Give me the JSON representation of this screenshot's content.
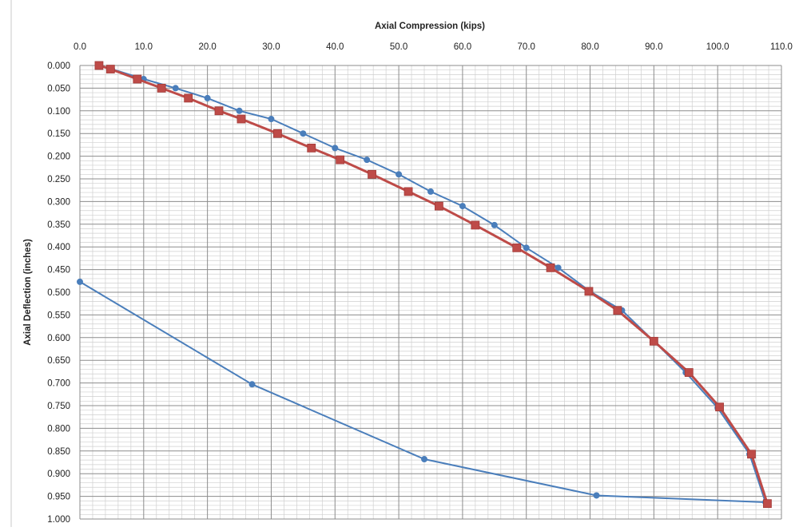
{
  "chart_data": {
    "type": "scatter",
    "title": "",
    "xlabel": "Axial Compression (kips)",
    "ylabel": "Axial Deflection (inches)",
    "x_axis_position": "top",
    "y_axis_reversed": true,
    "xlim": [
      0,
      110
    ],
    "ylim": [
      0,
      1.0
    ],
    "x_major_step": 10,
    "x_minor_step": 2,
    "y_major_step": 0.05,
    "y_minor_step": 0.01,
    "grid": true,
    "legend": "none",
    "x_tick_labels": [
      "0.0",
      "10.0",
      "20.0",
      "30.0",
      "40.0",
      "50.0",
      "60.0",
      "70.0",
      "80.0",
      "90.0",
      "100.0",
      "110.0"
    ],
    "y_tick_labels": [
      "0.000",
      "0.050",
      "0.100",
      "0.150",
      "0.200",
      "0.250",
      "0.300",
      "0.350",
      "0.400",
      "0.450",
      "0.500",
      "0.550",
      "0.600",
      "0.650",
      "0.700",
      "0.750",
      "0.800",
      "0.850",
      "0.900",
      "0.950",
      "1.000"
    ],
    "series": [
      {
        "color": "#4a7ebb",
        "marker": "circle",
        "line_width": 2,
        "points": [
          [
            3.0,
            0.0
          ],
          [
            5.0,
            0.008
          ],
          [
            10.0,
            0.03
          ],
          [
            15.0,
            0.05
          ],
          [
            20.0,
            0.072
          ],
          [
            25.0,
            0.1
          ],
          [
            30.0,
            0.118
          ],
          [
            35.0,
            0.15
          ],
          [
            40.0,
            0.182
          ],
          [
            45.0,
            0.208
          ],
          [
            50.0,
            0.24
          ],
          [
            55.0,
            0.278
          ],
          [
            60.0,
            0.31
          ],
          [
            65.0,
            0.352
          ],
          [
            70.0,
            0.402
          ],
          [
            75.0,
            0.446
          ],
          [
            80.0,
            0.498
          ],
          [
            85.0,
            0.54
          ],
          [
            90.0,
            0.608
          ],
          [
            95.0,
            0.677
          ],
          [
            100.0,
            0.755
          ],
          [
            105.0,
            0.857
          ],
          [
            107.5,
            0.963
          ],
          [
            81.0,
            0.948
          ],
          [
            54.0,
            0.868
          ],
          [
            27.0,
            0.703
          ],
          [
            0.0,
            0.477
          ]
        ]
      },
      {
        "color": "#be4b48",
        "marker": "square",
        "line_width": 3,
        "points": [
          [
            3.0,
            0.0
          ],
          [
            4.8,
            0.008
          ],
          [
            9.0,
            0.03
          ],
          [
            12.8,
            0.05
          ],
          [
            17.0,
            0.072
          ],
          [
            21.8,
            0.1
          ],
          [
            25.3,
            0.118
          ],
          [
            31.0,
            0.15
          ],
          [
            36.3,
            0.182
          ],
          [
            40.8,
            0.208
          ],
          [
            45.8,
            0.24
          ],
          [
            51.5,
            0.278
          ],
          [
            56.3,
            0.31
          ],
          [
            62.0,
            0.352
          ],
          [
            68.5,
            0.402
          ],
          [
            73.8,
            0.446
          ],
          [
            79.8,
            0.498
          ],
          [
            84.3,
            0.54
          ],
          [
            90.0,
            0.608
          ],
          [
            95.5,
            0.677
          ],
          [
            100.3,
            0.753
          ],
          [
            105.3,
            0.857
          ],
          [
            107.8,
            0.966
          ]
        ]
      }
    ]
  }
}
